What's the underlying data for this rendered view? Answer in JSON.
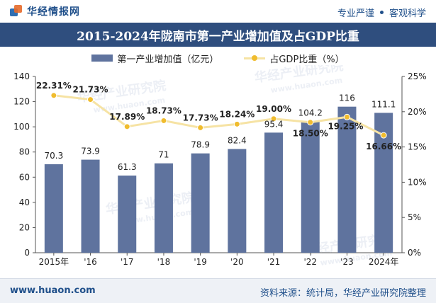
{
  "header": {
    "brand": "华经情报网",
    "tagline_left": "专业严谨",
    "tagline_right": "客观科学"
  },
  "footer": {
    "url": "www.huaon.com",
    "source": "资料来源：统计局，华经产业研究院整理"
  },
  "colors": {
    "bar": "#5f739e",
    "line": "#f6e3a4",
    "marker": "#f0bc2e",
    "title_bg": "#2f4e7e"
  },
  "chart_data": {
    "type": "bar",
    "title": "2015-2024年陇南市第一产业增加值及占GDP比重",
    "categories": [
      "2015年",
      "'16",
      "'17",
      "'18",
      "'19",
      "'20",
      "'21",
      "'22",
      "'23",
      "2024年"
    ],
    "series": [
      {
        "name": "第一产业增加值（亿元）",
        "type": "bar",
        "axis": "left",
        "values": [
          70.3,
          73.9,
          61.3,
          71,
          78.9,
          82.4,
          95.4,
          104.2,
          116,
          111.1
        ],
        "labels": [
          "70.3",
          "73.9",
          "61.3",
          "71",
          "78.9",
          "82.4",
          "95.4",
          "104.2",
          "116",
          "111.1"
        ]
      },
      {
        "name": "占GDP比重（%）",
        "type": "line",
        "axis": "right",
        "values": [
          22.31,
          21.73,
          17.89,
          18.73,
          17.73,
          18.24,
          19.0,
          18.5,
          19.25,
          16.66
        ],
        "labels": [
          "22.31%",
          "21.73%",
          "17.89%",
          "18.73%",
          "17.73%",
          "18.24%",
          "19.00%",
          "18.50%",
          "19.25%",
          "16.66%"
        ]
      }
    ],
    "y_left": {
      "lim": [
        0,
        140
      ],
      "ticks": [
        "0",
        "20",
        "40",
        "60",
        "80",
        "100",
        "120",
        "140"
      ]
    },
    "y_right": {
      "lim": [
        0,
        25
      ],
      "ticks": [
        "0%",
        "5%",
        "10%",
        "15%",
        "20%",
        "25%"
      ]
    },
    "legend_position": "top-center",
    "grid": false,
    "watermark": [
      "华经产业研究院",
      "www.huaon.com"
    ]
  }
}
